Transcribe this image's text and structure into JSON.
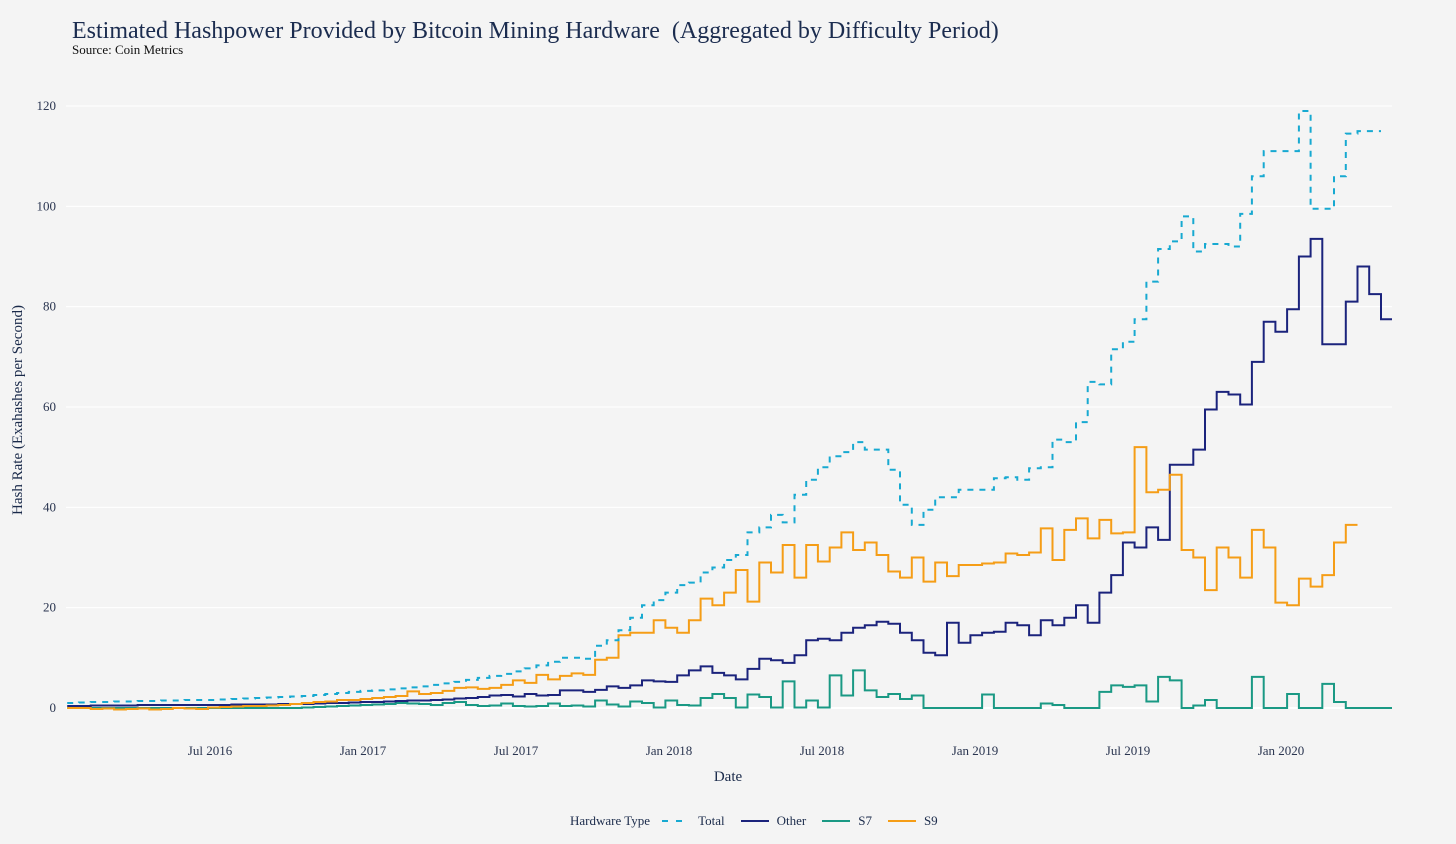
{
  "chart_data": {
    "type": "line",
    "step": true,
    "title": "Estimated Hashpower Provided by Bitcoin Mining Hardware  (Aggregated by Difficulty Period)",
    "subtitle": "Source: Coin Metrics",
    "xlabel": "Date",
    "ylabel": "Hash Rate (Exahashes per Second)",
    "ylim": [
      -1.5,
      122
    ],
    "yticks": [
      0,
      20,
      40,
      60,
      80,
      100,
      120
    ],
    "xticks": [
      "Jul 2016",
      "Jan 2017",
      "Jul 2017",
      "Jan 2018",
      "Jul 2018",
      "Jan 2019",
      "Jul 2019",
      "Jan 2020"
    ],
    "x_start_months_before_jul2016": 5.6,
    "period_months": 0.46,
    "grid": true,
    "legend": {
      "title": "Hardware Type",
      "placement": "bottom-center"
    },
    "series": [
      {
        "name": "Total",
        "color": "#17a9d1",
        "dash": true,
        "values": [
          1.0,
          1.1,
          1.2,
          1.2,
          1.3,
          1.3,
          1.4,
          1.4,
          1.5,
          1.5,
          1.6,
          1.6,
          1.6,
          1.7,
          1.8,
          1.9,
          2.0,
          2.1,
          2.2,
          2.3,
          2.4,
          2.6,
          2.8,
          3.0,
          3.2,
          3.4,
          3.5,
          3.7,
          3.9,
          4.1,
          4.3,
          4.6,
          4.9,
          5.2,
          5.6,
          6.0,
          6.4,
          6.8,
          7.3,
          7.9,
          8.5,
          9.2,
          10.0,
          10.0,
          9.8,
          12.4,
          13.5,
          15.5,
          18.0,
          20.5,
          21.5,
          23.0,
          24.5,
          25.0,
          27.0,
          28.0,
          29.5,
          30.5,
          35.0,
          36.0,
          38.5,
          37.0,
          42.5,
          45.5,
          48.0,
          50.2,
          51.0,
          53.0,
          51.5,
          51.5,
          47.5,
          40.5,
          36.5,
          39.5,
          42.0,
          42.0,
          43.5,
          43.5,
          43.5,
          45.8,
          46.0,
          45.5,
          47.8,
          48.0,
          53.5,
          53.0,
          57.0,
          65.0,
          64.5,
          71.5,
          73.0,
          77.5,
          85.0,
          91.5,
          93.0,
          98.0,
          91.0,
          92.5,
          92.5,
          92.0,
          98.5,
          106.0,
          111.0,
          111.0,
          111.0,
          119.0,
          99.5,
          99.5,
          106.0,
          114.5,
          115.0,
          115.0
        ]
      },
      {
        "name": "Other",
        "color": "#1b237c",
        "dash": false,
        "values": [
          0.4,
          0.4,
          0.5,
          0.5,
          0.5,
          0.5,
          0.6,
          0.6,
          0.6,
          0.6,
          0.6,
          0.6,
          0.6,
          0.6,
          0.7,
          0.7,
          0.7,
          0.7,
          0.8,
          0.8,
          0.8,
          0.9,
          1.0,
          1.0,
          1.1,
          1.2,
          1.2,
          1.3,
          1.4,
          1.5,
          1.5,
          1.6,
          1.7,
          1.9,
          2.0,
          2.2,
          2.5,
          2.6,
          2.3,
          2.8,
          2.5,
          2.6,
          3.5,
          3.5,
          3.2,
          3.6,
          4.3,
          4.0,
          4.5,
          5.5,
          5.3,
          5.2,
          6.5,
          7.5,
          8.3,
          7.0,
          6.5,
          5.7,
          7.8,
          9.8,
          9.5,
          9.0,
          10.5,
          13.5,
          13.8,
          13.5,
          15.0,
          16.0,
          16.5,
          17.2,
          16.8,
          15.0,
          13.5,
          11.0,
          10.5,
          17.0,
          13.0,
          14.5,
          15.0,
          15.2,
          17.0,
          16.5,
          14.5,
          17.5,
          16.5,
          18.0,
          20.5,
          17.0,
          23.0,
          26.5,
          33.0,
          32.0,
          36.0,
          33.5,
          48.5,
          48.5,
          51.5,
          59.5,
          63.0,
          62.5,
          60.5,
          69.0,
          77.0,
          75.0,
          79.5,
          90.0,
          93.5,
          72.5,
          72.5,
          81.0,
          88.0,
          82.5,
          77.5
        ]
      },
      {
        "name": "S7",
        "color": "#1a9984",
        "dash": false,
        "values": [
          0,
          0,
          0,
          0,
          0,
          0,
          0,
          0,
          0,
          0,
          0,
          0,
          0,
          0,
          0,
          0,
          0,
          0,
          0,
          0,
          0.1,
          0.2,
          0.3,
          0.4,
          0.5,
          0.6,
          0.7,
          0.8,
          1.0,
          0.9,
          0.8,
          0.6,
          1.0,
          1.2,
          0.6,
          0.4,
          0.5,
          0.9,
          0.4,
          0.3,
          0.4,
          0.9,
          0.4,
          0.5,
          0.3,
          1.5,
          0.7,
          0.3,
          1.3,
          1.0,
          0.1,
          1.5,
          0.6,
          0.5,
          2.0,
          2.8,
          2.0,
          0.1,
          2.7,
          2.2,
          0.1,
          5.3,
          0.1,
          1.5,
          0.1,
          6.5,
          2.5,
          7.5,
          3.5,
          2.2,
          2.8,
          1.8,
          2.5,
          0,
          0,
          0,
          0,
          0,
          2.7,
          0,
          0,
          0,
          0,
          0.9,
          0.6,
          0,
          0,
          0,
          3.2,
          4.5,
          4.2,
          4.5,
          1.3,
          6.2,
          5.5,
          0,
          0.5,
          1.6,
          0,
          0,
          0,
          6.2,
          0,
          0,
          2.8,
          0,
          0,
          4.8,
          1.2,
          0,
          0,
          0,
          0
        ]
      },
      {
        "name": "S9",
        "color": "#f59d16",
        "dash": false,
        "values": [
          0,
          0,
          -0.2,
          -0.1,
          -0.3,
          -0.2,
          -0.1,
          -0.3,
          -0.2,
          0,
          -0.1,
          -0.2,
          0.1,
          0.2,
          0.3,
          0.4,
          0.4,
          0.5,
          0.6,
          0.8,
          1.0,
          1.2,
          1.3,
          1.6,
          1.6,
          1.8,
          2.0,
          2.2,
          2.4,
          3.3,
          2.8,
          3.0,
          3.4,
          4.0,
          4.1,
          3.8,
          4.0,
          4.6,
          5.5,
          5.0,
          6.6,
          5.7,
          6.4,
          6.9,
          6.6,
          9.6,
          10.0,
          14.5,
          15.0,
          15.0,
          17.5,
          16.0,
          15.0,
          17.5,
          21.8,
          20.5,
          23.0,
          27.5,
          21.2,
          29.0,
          27.0,
          32.5,
          26.0,
          32.5,
          29.2,
          32.0,
          35.0,
          31.5,
          33.0,
          30.5,
          27.2,
          26.0,
          30.0,
          25.2,
          29.0,
          26.3,
          28.5,
          28.5,
          28.8,
          29.0,
          30.8,
          30.5,
          31.0,
          35.8,
          29.5,
          35.5,
          37.8,
          33.8,
          37.5,
          34.8,
          35.0,
          52.0,
          43.0,
          43.5,
          46.5,
          31.5,
          30.0,
          23.5,
          32.0,
          30.0,
          26.0,
          35.5,
          32.0,
          21.0,
          20.5,
          25.8,
          24.2,
          26.5,
          33.0,
          36.5
        ]
      }
    ]
  }
}
